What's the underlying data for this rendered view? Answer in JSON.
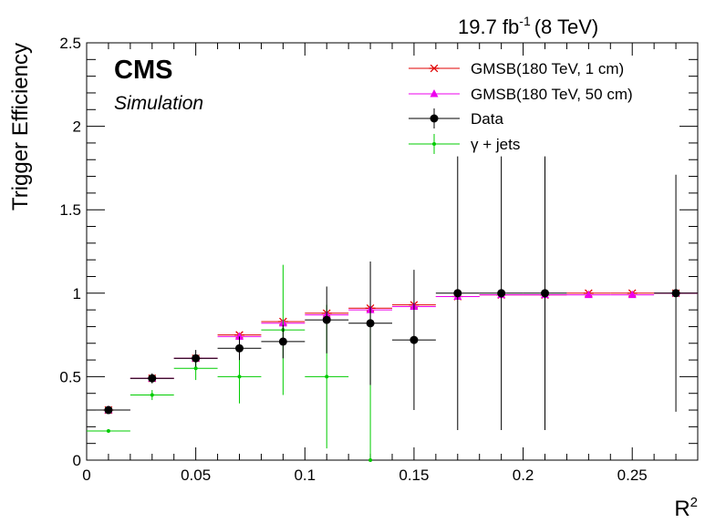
{
  "header": {
    "lumi_value": "19.7 fb",
    "lumi_exp": "-1",
    "lumi_energy": "(8 TeV)"
  },
  "badge": {
    "experiment": "CMS",
    "tag": "Simulation"
  },
  "chart_data": {
    "type": "scatter",
    "xlabel_base": "R",
    "xlabel_exp": "2",
    "ylabel": "Trigger Efficiency",
    "xlim": [
      0,
      0.28
    ],
    "ylim": [
      0,
      2.5
    ],
    "x_major_ticks": [
      0,
      0.05,
      0.1,
      0.15,
      0.2,
      0.25
    ],
    "x_tick_labels": [
      "0",
      "0.05",
      "0.1",
      "0.15",
      "0.2",
      "0.25"
    ],
    "y_major_ticks": [
      0,
      0.5,
      1,
      1.5,
      2,
      2.5
    ],
    "y_tick_labels": [
      "0",
      "0.5",
      "1",
      "1.5",
      "2",
      "2.5"
    ],
    "grid": false,
    "legend_position": "top-right",
    "series": [
      {
        "name": "GMSB(180 TeV, 1 cm)",
        "color": "#e00000",
        "marker": "star",
        "points": [
          {
            "x": 0.01,
            "y": 0.3,
            "xerr": 0.01,
            "yerr": 0.0
          },
          {
            "x": 0.03,
            "y": 0.49,
            "xerr": 0.01,
            "yerr": 0.0
          },
          {
            "x": 0.05,
            "y": 0.61,
            "xerr": 0.01,
            "yerr": 0.0
          },
          {
            "x": 0.07,
            "y": 0.75,
            "xerr": 0.01,
            "yerr": 0.0
          },
          {
            "x": 0.09,
            "y": 0.83,
            "xerr": 0.01,
            "yerr": 0.0
          },
          {
            "x": 0.11,
            "y": 0.88,
            "xerr": 0.01,
            "yerr": 0.0
          },
          {
            "x": 0.13,
            "y": 0.91,
            "xerr": 0.01,
            "yerr": 0.0
          },
          {
            "x": 0.15,
            "y": 0.93,
            "xerr": 0.01,
            "yerr": 0.0
          },
          {
            "x": 0.17,
            "y": 0.98,
            "xerr": 0.01,
            "yerr": 0.0
          },
          {
            "x": 0.19,
            "y": 0.99,
            "xerr": 0.01,
            "yerr": 0.0
          },
          {
            "x": 0.21,
            "y": 0.99,
            "xerr": 0.01,
            "yerr": 0.0
          },
          {
            "x": 0.23,
            "y": 1.0,
            "xerr": 0.01,
            "yerr": 0.0
          },
          {
            "x": 0.25,
            "y": 1.0,
            "xerr": 0.01,
            "yerr": 0.0
          },
          {
            "x": 0.27,
            "y": 1.0,
            "xerr": 0.01,
            "yerr": 0.0
          }
        ]
      },
      {
        "name": "GMSB(180 TeV, 50 cm)",
        "color": "#ee00ee",
        "marker": "triangle",
        "points": [
          {
            "x": 0.01,
            "y": 0.3,
            "xerr": 0.01,
            "yerr": 0.0
          },
          {
            "x": 0.03,
            "y": 0.49,
            "xerr": 0.01,
            "yerr": 0.0
          },
          {
            "x": 0.05,
            "y": 0.61,
            "xerr": 0.01,
            "yerr": 0.0
          },
          {
            "x": 0.07,
            "y": 0.74,
            "xerr": 0.01,
            "yerr": 0.0
          },
          {
            "x": 0.09,
            "y": 0.82,
            "xerr": 0.01,
            "yerr": 0.0
          },
          {
            "x": 0.11,
            "y": 0.87,
            "xerr": 0.01,
            "yerr": 0.0
          },
          {
            "x": 0.13,
            "y": 0.9,
            "xerr": 0.01,
            "yerr": 0.0
          },
          {
            "x": 0.15,
            "y": 0.92,
            "xerr": 0.01,
            "yerr": 0.0
          },
          {
            "x": 0.17,
            "y": 0.98,
            "xerr": 0.01,
            "yerr": 0.0
          },
          {
            "x": 0.19,
            "y": 0.99,
            "xerr": 0.01,
            "yerr": 0.0
          },
          {
            "x": 0.21,
            "y": 0.99,
            "xerr": 0.01,
            "yerr": 0.0
          },
          {
            "x": 0.23,
            "y": 0.99,
            "xerr": 0.01,
            "yerr": 0.0
          },
          {
            "x": 0.25,
            "y": 0.99,
            "xerr": 0.01,
            "yerr": 0.0
          },
          {
            "x": 0.27,
            "y": 1.0,
            "xerr": 0.01,
            "yerr": 0.0
          }
        ]
      },
      {
        "name": "Data",
        "color": "#000000",
        "marker": "circle",
        "points": [
          {
            "x": 0.01,
            "y": 0.3,
            "xerr": 0.01,
            "yerr": 0.02
          },
          {
            "x": 0.03,
            "y": 0.49,
            "xerr": 0.01,
            "yerr": 0.03
          },
          {
            "x": 0.05,
            "y": 0.61,
            "xerr": 0.01,
            "yerr": 0.05
          },
          {
            "x": 0.07,
            "y": 0.67,
            "xerr": 0.01,
            "yerr": 0.07
          },
          {
            "x": 0.09,
            "y": 0.71,
            "xerr": 0.01,
            "yerr": 0.1
          },
          {
            "x": 0.11,
            "y": 0.84,
            "xerr": 0.01,
            "yerr": 0.2
          },
          {
            "x": 0.13,
            "y": 0.82,
            "xerr": 0.01,
            "yerr": 0.37
          },
          {
            "x": 0.15,
            "y": 0.72,
            "xerr": 0.01,
            "yerr": 0.42
          },
          {
            "x": 0.17,
            "y": 1.0,
            "xerr": 0.01,
            "yerr": 0.82
          },
          {
            "x": 0.19,
            "y": 1.0,
            "xerr": 0.01,
            "yerr": 0.82
          },
          {
            "x": 0.21,
            "y": 1.0,
            "xerr": 0.01,
            "yerr": 0.82
          },
          {
            "x": 0.27,
            "y": 1.0,
            "xerr": 0.01,
            "yerr": 0.71
          }
        ]
      },
      {
        "name": "γ + jets",
        "color": "#00cc00",
        "marker": "small",
        "points": [
          {
            "x": 0.01,
            "y": 0.175,
            "xerr": 0.01,
            "yerr": 0.01
          },
          {
            "x": 0.03,
            "y": 0.39,
            "xerr": 0.01,
            "yerr": 0.03
          },
          {
            "x": 0.05,
            "y": 0.55,
            "xerr": 0.01,
            "yerr": 0.07
          },
          {
            "x": 0.07,
            "y": 0.5,
            "xerr": 0.01,
            "yerr": 0.16
          },
          {
            "x": 0.09,
            "y": 0.78,
            "xerr": 0.01,
            "yerr": 0.39
          },
          {
            "x": 0.11,
            "y": 0.5,
            "xerr": 0.01,
            "yerr": 0.43
          },
          {
            "x": 0.13,
            "y": 0.0,
            "xerr": 0.0,
            "yerr": 0.91
          }
        ]
      }
    ]
  }
}
